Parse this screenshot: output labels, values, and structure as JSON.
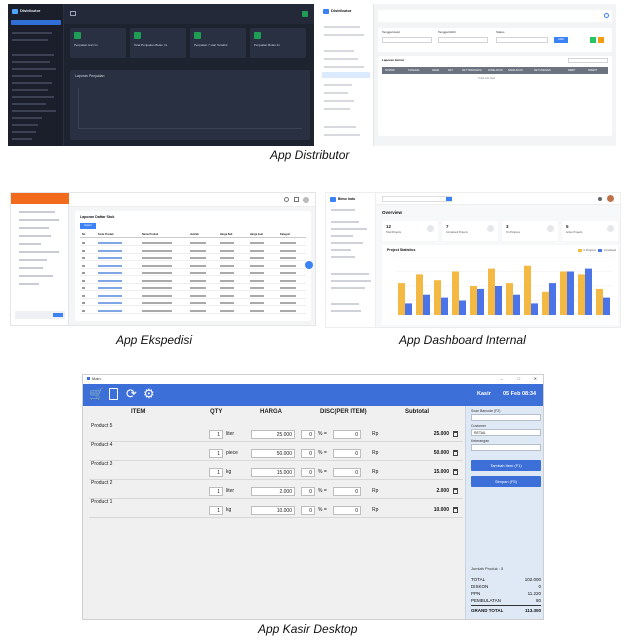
{
  "captions": {
    "distributor": "App Distributor",
    "ekspedisi": "App Ekspedisi",
    "dashboard": "App Dashboard Internal",
    "kasir": "App Kasir Desktop"
  },
  "distributor_dark": {
    "brand": "Distributor",
    "cards": [
      "Penjualan Hari Ini",
      "Total Penjualan Bulan Ini",
      "Penjualan 7 Hari Terakhir",
      "Penjualan Bulan Ini"
    ],
    "chart_title": "Laporan Penjualan"
  },
  "distributor_light": {
    "brand": "Distributor",
    "filter_labels": [
      "Tanggal Awal",
      "Tanggal Akhir",
      "Status"
    ],
    "search_btn": "CARI",
    "table_title": "Laporan Jurnal",
    "columns": [
      "NOMOR",
      "TANGGAL",
      "NAMA",
      "KET",
      "KET TRANSAKSI",
      "KODE AKUN",
      "NAMA AKUN",
      "KET UMUMAN",
      "DEBIT",
      "KREDIT"
    ],
    "empty": "Tidak Ada Data"
  },
  "ekspedisi": {
    "table_title": "Laporan Daftar Stok",
    "export_btn": "Export",
    "columns": [
      "No",
      "Kode Produk",
      "Nama Produk",
      "Jumlah",
      "Harga Beli",
      "Harga Jual",
      "Kategori"
    ]
  },
  "dashboard": {
    "brand": "Bimo Indo",
    "title": "Overview",
    "stats": [
      {
        "value": "12",
        "label": "Total Projects"
      },
      {
        "value": "7",
        "label": "Completed Projects"
      },
      {
        "value": "3",
        "label": "On Progress"
      },
      {
        "value": "5",
        "label": "Active Projects"
      }
    ],
    "chart_title": "Project Statistics",
    "legend": [
      "In Progress",
      "Completed"
    ]
  },
  "kasir": {
    "window_title": "Main",
    "header_right": {
      "user": "Kasir",
      "date": "05 Feb 08:34"
    },
    "columns": {
      "item": "ITEM",
      "qty": "QTY",
      "harga": "HARGA",
      "disc": "DISC(PER ITEM)",
      "subtotal": "Subtotal"
    },
    "rows": [
      {
        "name": "Product 5",
        "qty": "1",
        "unit": "liter",
        "price": "25.000",
        "disc_pct": "0",
        "disc_amt": "0",
        "cur": "Rp",
        "subtotal": "25.000"
      },
      {
        "name": "Product 4",
        "qty": "1",
        "unit": "piece",
        "price": "50.000",
        "disc_pct": "0",
        "disc_amt": "0",
        "cur": "Rp",
        "subtotal": "50.000"
      },
      {
        "name": "Product 3",
        "qty": "1",
        "unit": "kg",
        "price": "15.000",
        "disc_pct": "0",
        "disc_amt": "0",
        "cur": "Rp",
        "subtotal": "15.000"
      },
      {
        "name": "Product 2",
        "qty": "1",
        "unit": "liter",
        "price": "2.000",
        "disc_pct": "0",
        "disc_amt": "0",
        "cur": "Rp",
        "subtotal": "2.000"
      },
      {
        "name": "Product 1",
        "qty": "1",
        "unit": "kg",
        "price": "10.000",
        "disc_pct": "0",
        "disc_amt": "0",
        "cur": "Rp",
        "subtotal": "10.000"
      }
    ],
    "right": {
      "scan_label": "Scan Barcode (F2)",
      "customer_label": "Customer",
      "customer_value": "RETAIL",
      "note_label": "Keterangan",
      "add_btn": "Tambah Item (F1)",
      "save_btn": "Simpan (F5)",
      "count": "Jumlah Produk : 5",
      "totals": [
        {
          "label": "TOTAL",
          "value": "102.000"
        },
        {
          "label": "DISKON",
          "value": "0"
        },
        {
          "label": "PPN",
          "value": "11.220"
        },
        {
          "label": "PEMBULATAN",
          "value": "80"
        }
      ],
      "grand": {
        "label": "GRAND TOTAL",
        "value": "113.300"
      }
    }
  }
}
